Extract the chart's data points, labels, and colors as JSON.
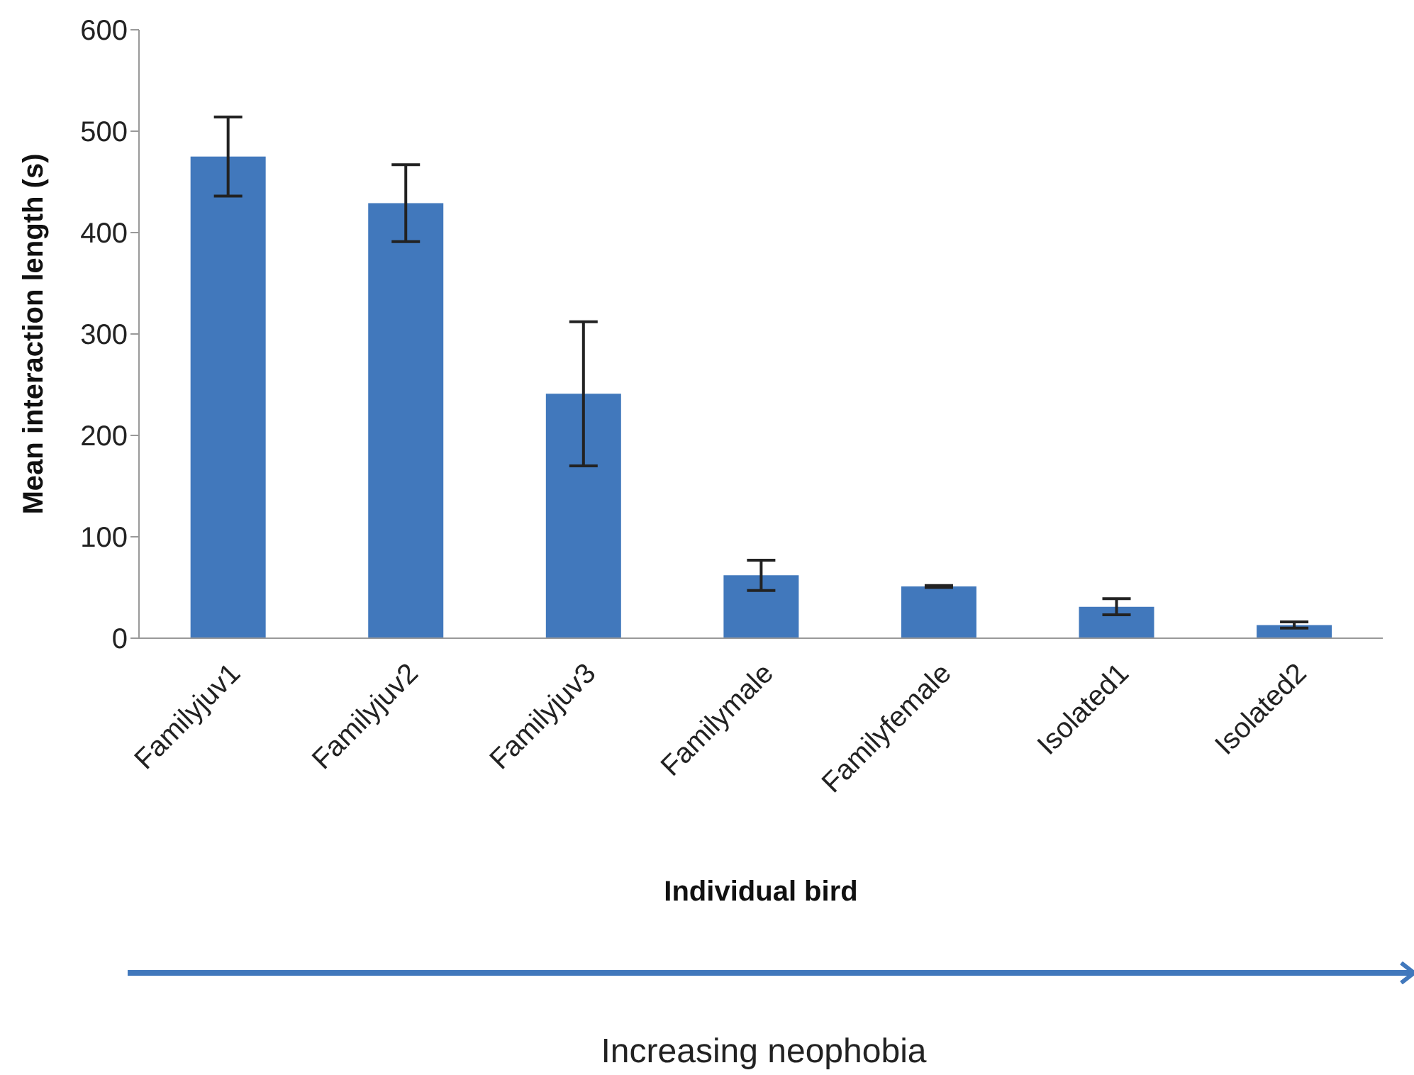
{
  "chart_data": {
    "type": "bar",
    "xlabel": "Individual bird",
    "ylabel": "Mean interaction length (s)",
    "categories": [
      "Familyjuv1",
      "Familyjuv2",
      "Familyjuv3",
      "Familymale",
      "Familyfemale",
      "Isolated1",
      "Isolated2"
    ],
    "values": [
      475,
      429,
      241,
      62,
      51,
      31,
      13
    ],
    "errors": [
      39,
      38,
      71,
      15,
      1,
      8,
      3
    ],
    "color": "#4178bc",
    "ylim": [
      0,
      600
    ],
    "yticks": [
      0,
      100,
      200,
      300,
      400,
      500,
      600
    ],
    "annotations": [
      "Increasing neophobia"
    ]
  }
}
